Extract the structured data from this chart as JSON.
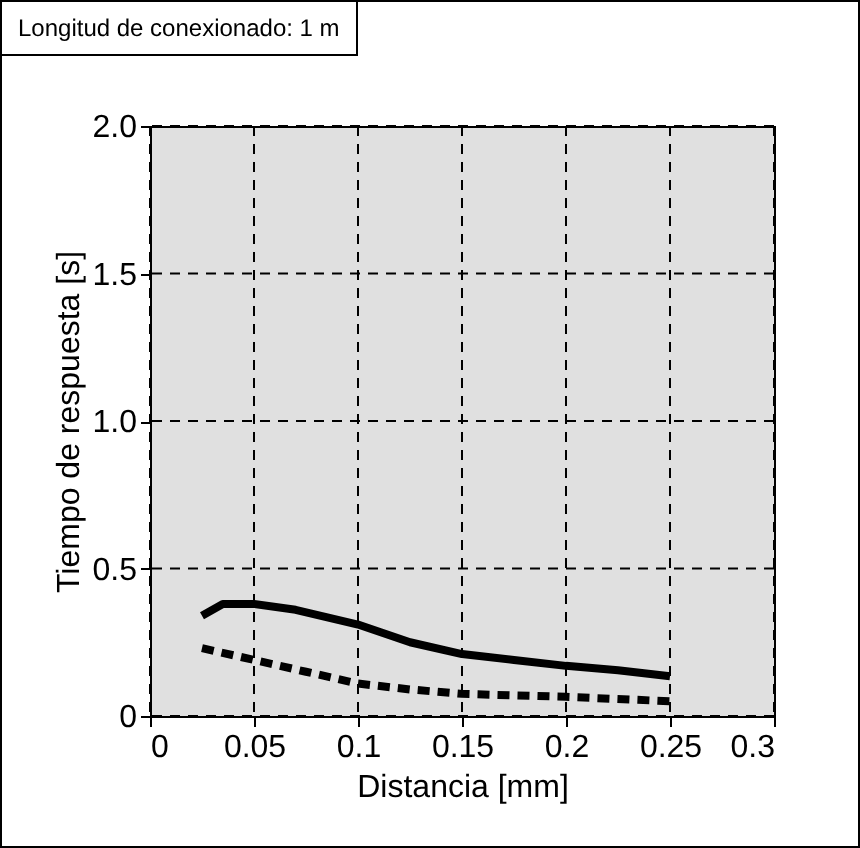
{
  "chart_data": {
    "type": "line",
    "xlabel": "Distancia [mm]",
    "ylabel": "Tiempo de respuesta [s]",
    "annotations": [
      "Longitud de conexionado: 1 m"
    ],
    "xlim": [
      0,
      0.3
    ],
    "xticks": [
      0,
      0.05,
      0.1,
      0.15,
      0.2,
      0.25,
      0.3
    ],
    "ylim": [
      0,
      2
    ],
    "yticks": [
      0,
      {
        "value": 0.5,
        "label": "0.5"
      },
      {
        "value": 1,
        "label": "1.0"
      },
      {
        "value": 1.5,
        "label": "1.5"
      },
      {
        "value": 2,
        "label": "2.0"
      }
    ],
    "grid": true,
    "series": [
      {
        "color": "#000000",
        "line_style": "solid",
        "x": [
          0.025,
          0.035,
          0.05,
          0.07,
          0.1,
          0.125,
          0.15,
          0.175,
          0.2,
          0.225,
          0.25
        ],
        "values": [
          0.34,
          0.38,
          0.38,
          0.36,
          0.31,
          0.25,
          0.21,
          0.19,
          0.17,
          0.155,
          0.135
        ]
      },
      {
        "color": "#000000",
        "line_style": "dashed",
        "x": [
          0.025,
          0.05,
          0.075,
          0.1,
          0.125,
          0.15,
          0.2,
          0.25
        ],
        "values": [
          0.23,
          0.19,
          0.15,
          0.11,
          0.09,
          0.075,
          0.065,
          0.05
        ]
      }
    ]
  }
}
